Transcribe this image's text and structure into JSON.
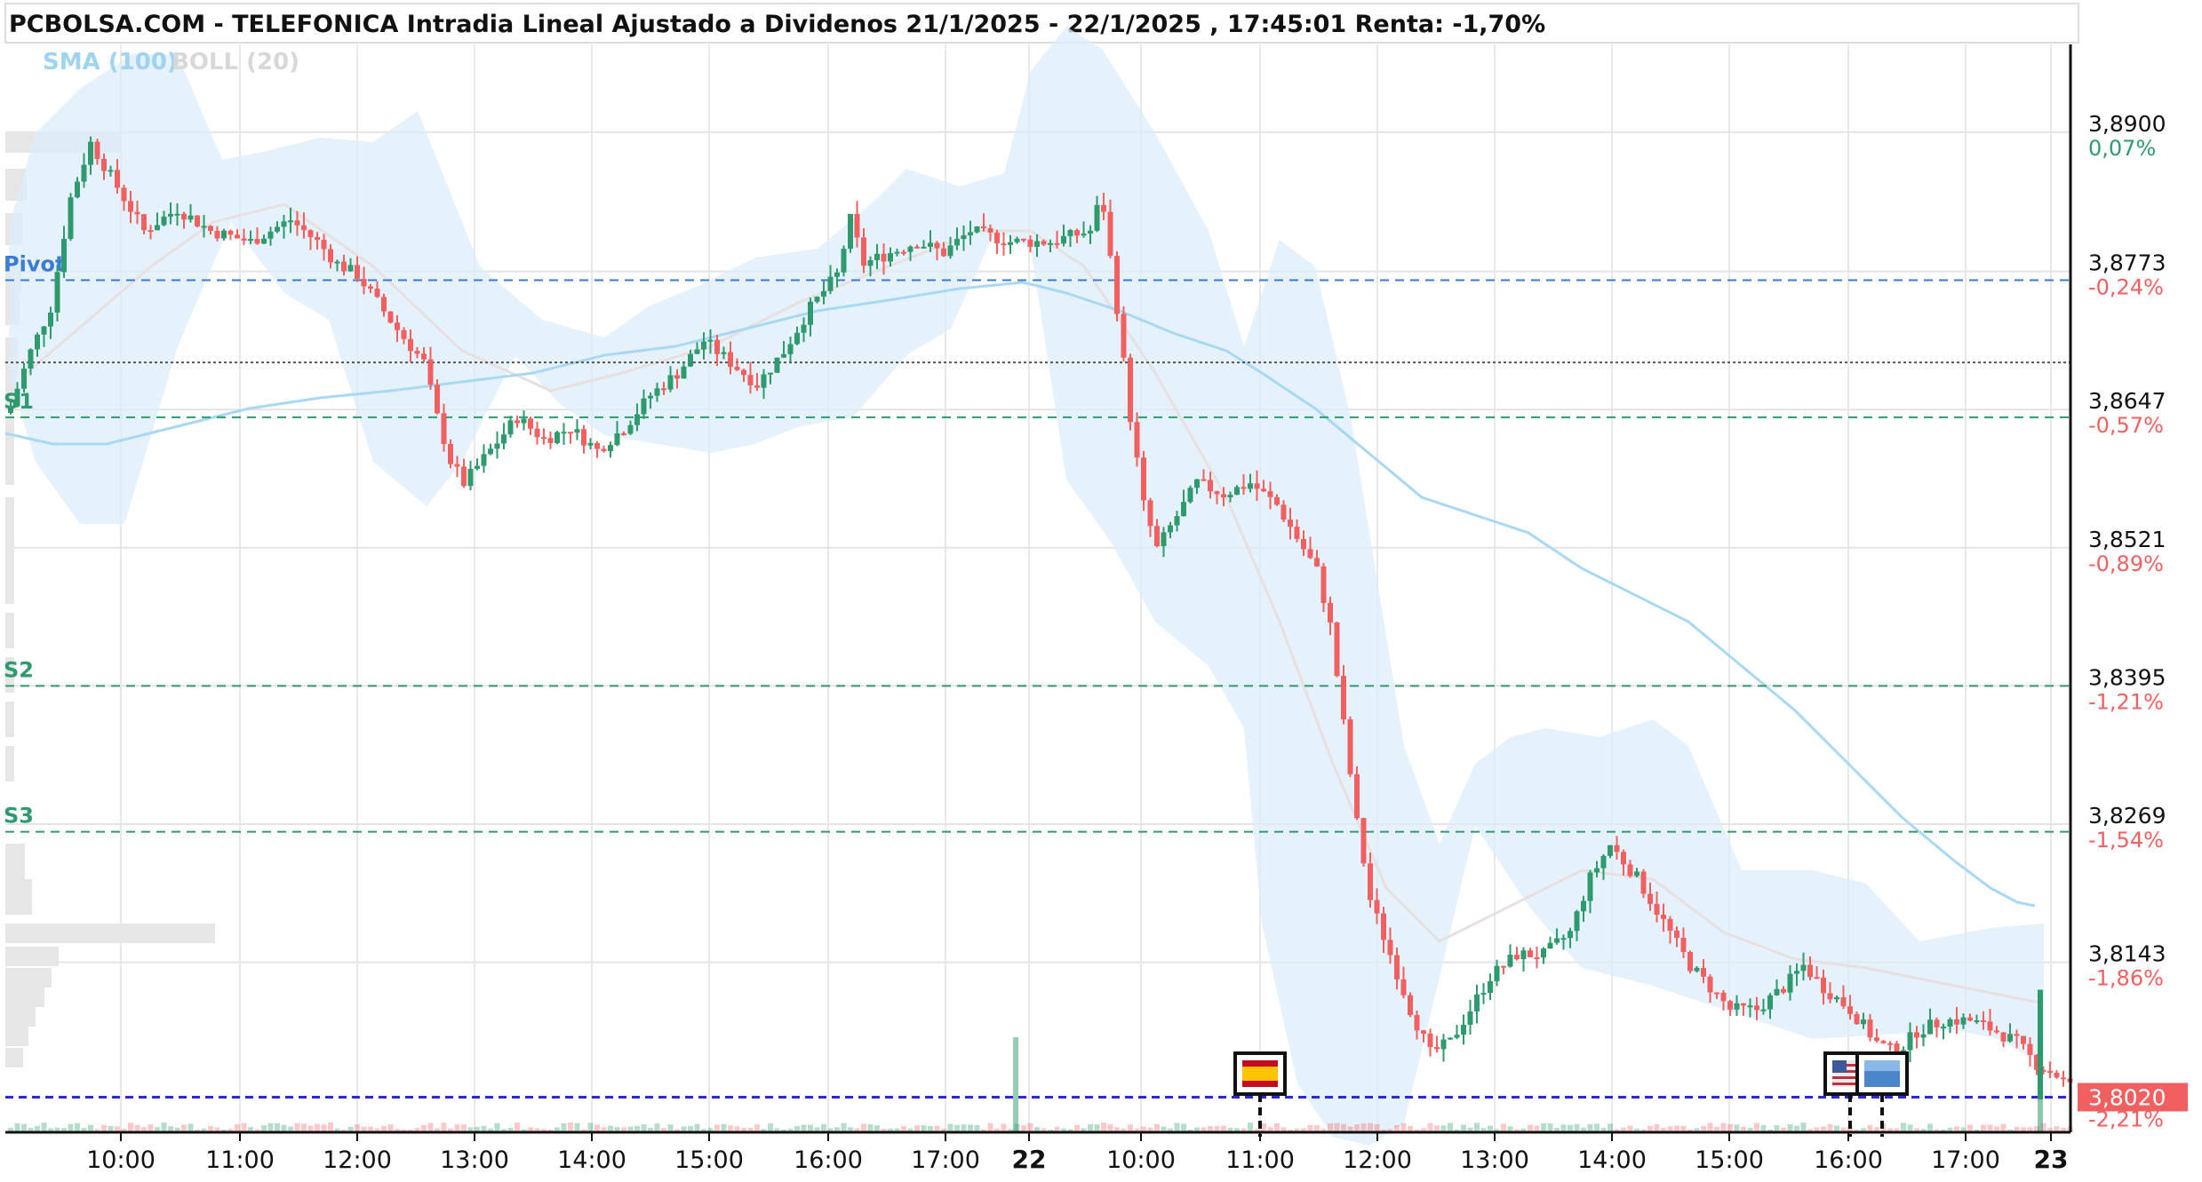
{
  "header": {
    "title": "PCBOLSA.COM - TELEFONICA Intradia Lineal Ajustado a Dividenos 21/1/2025 - 22/1/2025 , 17:45:01 Renta: -1,70%"
  },
  "legend": {
    "sma": "SMA (100)",
    "boll": "BOLL (20)"
  },
  "colors": {
    "up": "#2e9a6e",
    "down": "#f06060",
    "band": "#dcedfa",
    "sma": "#a8d8f4",
    "pivot": "#3a7bd5",
    "support": "#2e9a6e",
    "last": "#f06060"
  },
  "chart_data": {
    "type": "candlestick",
    "ylim": [
      3.7988,
      3.898
    ],
    "x_ticks": [
      "10:00",
      "11:00",
      "12:00",
      "13:00",
      "14:00",
      "15:00",
      "16:00",
      "17:00",
      "22",
      "10:00",
      "11:00",
      "12:00",
      "13:00",
      "14:00",
      "15:00",
      "16:00",
      "17:00",
      "23"
    ],
    "y_ticks": [
      {
        "value": 3.89,
        "label": "3,8900",
        "pct": "0,07%",
        "pct_sign": "up"
      },
      {
        "value": 3.8773,
        "label": "3,8773",
        "pct": "-0,24%",
        "pct_sign": "down"
      },
      {
        "value": 3.8647,
        "label": "3,8647",
        "pct": "-0,57%",
        "pct_sign": "down"
      },
      {
        "value": 3.8521,
        "label": "3,8521",
        "pct": "-0,89%",
        "pct_sign": "down"
      },
      {
        "value": 3.8395,
        "label": "3,8395",
        "pct": "-1,21%",
        "pct_sign": "down"
      },
      {
        "value": 3.8269,
        "label": "3,8269",
        "pct": "-1,54%",
        "pct_sign": "down"
      },
      {
        "value": 3.8143,
        "label": "3,8143",
        "pct": "-1,86%",
        "pct_sign": "down"
      }
    ],
    "levels": [
      {
        "name": "Pivot",
        "value": 3.8765,
        "color": "#3a7bd5"
      },
      {
        "name": "S1",
        "value": 3.864,
        "color": "#2e9a6e"
      },
      {
        "name": "S2",
        "value": 3.8395,
        "color": "#2e9a6e"
      },
      {
        "name": "S3",
        "value": 3.8262,
        "color": "#2e9a6e"
      }
    ],
    "prev_close": 3.869,
    "last": {
      "value": 3.802,
      "label": "3,8020",
      "pct": "-2,21%"
    },
    "sessions": [
      {
        "label": "21/1/2025",
        "close_path": [
          [
            3.865,
            0
          ],
          [
            3.87,
            3
          ],
          [
            3.874,
            6
          ],
          [
            3.884,
            9
          ],
          [
            3.889,
            12
          ],
          [
            3.886,
            15
          ],
          [
            3.881,
            20
          ],
          [
            3.883,
            25
          ],
          [
            3.881,
            30
          ],
          [
            3.88,
            36
          ],
          [
            3.882,
            42
          ],
          [
            3.88,
            46
          ],
          [
            3.878,
            49
          ],
          [
            3.877,
            52
          ],
          [
            3.872,
            58
          ],
          [
            3.869,
            62
          ],
          [
            3.864,
            64
          ],
          [
            3.86,
            66
          ],
          [
            3.858,
            68
          ],
          [
            3.861,
            72
          ],
          [
            3.864,
            76
          ],
          [
            3.862,
            80
          ],
          [
            3.863,
            84
          ],
          [
            3.861,
            88
          ],
          [
            3.863,
            92
          ],
          [
            3.866,
            96
          ],
          [
            3.868,
            100
          ],
          [
            3.871,
            104
          ],
          [
            3.869,
            108
          ],
          [
            3.867,
            112
          ],
          [
            3.87,
            116
          ],
          [
            3.874,
            120
          ],
          [
            3.877,
            124
          ],
          [
            3.882,
            126
          ],
          [
            3.878,
            128
          ],
          [
            3.879,
            132
          ],
          [
            3.88,
            136
          ],
          [
            3.879,
            140
          ],
          [
            3.881,
            144
          ],
          [
            3.88,
            150
          ],
          [
            3.88,
            156
          ],
          [
            3.881,
            162
          ],
          [
            3.885,
            164
          ]
        ]
      },
      {
        "label": "22/1/2025",
        "close_path": [
          [
            3.883,
            164
          ],
          [
            3.874,
            166
          ],
          [
            3.864,
            168
          ],
          [
            3.856,
            170
          ],
          [
            3.852,
            172
          ],
          [
            3.855,
            175
          ],
          [
            3.858,
            178
          ],
          [
            3.857,
            182
          ],
          [
            3.858,
            186
          ],
          [
            3.856,
            190
          ],
          [
            3.853,
            193
          ],
          [
            3.85,
            196
          ],
          [
            3.845,
            198
          ],
          [
            3.836,
            200
          ],
          [
            3.827,
            202
          ],
          [
            3.82,
            204
          ],
          [
            3.815,
            207
          ],
          [
            3.81,
            210
          ],
          [
            3.806,
            213
          ],
          [
            3.807,
            216
          ],
          [
            3.81,
            219
          ],
          [
            3.813,
            222
          ],
          [
            3.815,
            226
          ],
          [
            3.815,
            230
          ],
          [
            3.817,
            234
          ],
          [
            3.822,
            237
          ],
          [
            3.825,
            240
          ],
          [
            3.822,
            244
          ],
          [
            3.818,
            248
          ],
          [
            3.814,
            252
          ],
          [
            3.812,
            255
          ],
          [
            3.81,
            258
          ],
          [
            3.81,
            262
          ],
          [
            3.812,
            266
          ],
          [
            3.814,
            269
          ],
          [
            3.812,
            272
          ],
          [
            3.81,
            276
          ],
          [
            3.807,
            280
          ],
          [
            3.806,
            283
          ],
          [
            3.808,
            286
          ],
          [
            3.809,
            290
          ],
          [
            3.809,
            294
          ],
          [
            3.808,
            298
          ],
          [
            3.807,
            301
          ],
          [
            3.805,
            304
          ],
          [
            3.804,
            307
          ],
          [
            3.803,
            309
          ],
          [
            3.807,
            310
          ]
        ]
      }
    ]
  }
}
